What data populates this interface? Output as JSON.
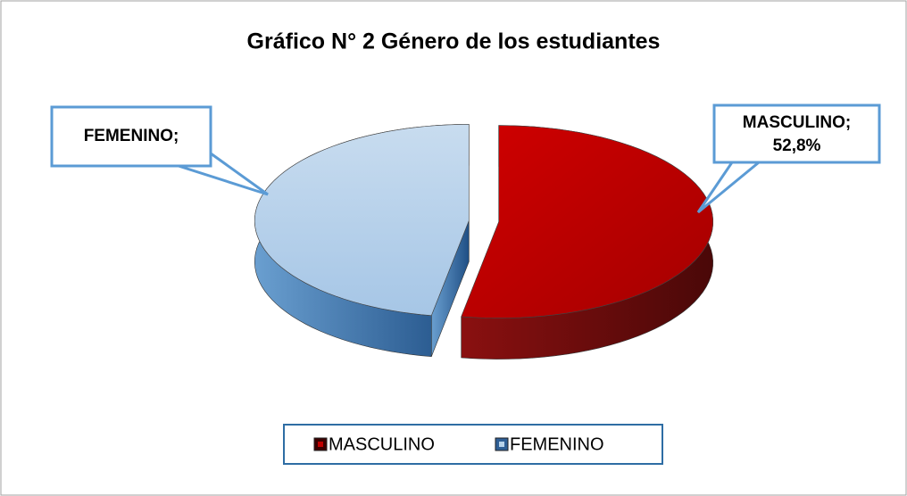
{
  "chart_data": {
    "type": "pie",
    "title": "Gráfico N° 2  Género de los estudiantes",
    "categories": [
      "MASCULINO",
      "FEMENINO"
    ],
    "values": [
      52.8,
      47.2
    ],
    "labels": [
      "MASCULINO;",
      "FEMENINO;"
    ],
    "value_labels": [
      "52,8%",
      null
    ],
    "colors": [
      "#c00000",
      "#b8d3ea"
    ],
    "legend": "bottom"
  }
}
